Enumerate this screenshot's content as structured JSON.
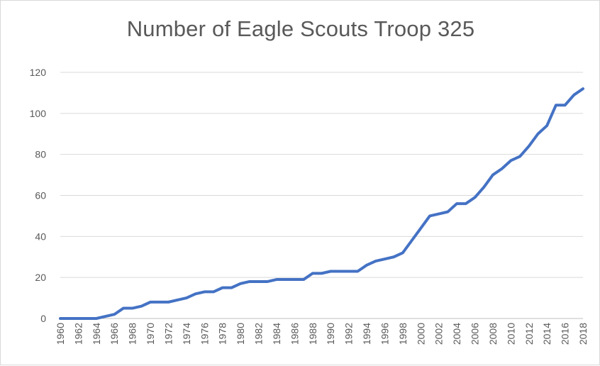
{
  "chart_data": {
    "type": "line",
    "title": "Number of Eagle Scouts Troop 325",
    "xlabel": "",
    "ylabel": "",
    "ylim": [
      0,
      120
    ],
    "yticks": [
      0,
      20,
      40,
      60,
      80,
      100,
      120
    ],
    "xlim": [
      1960,
      2018
    ],
    "xticks": [
      1960,
      1962,
      1964,
      1966,
      1968,
      1970,
      1972,
      1974,
      1976,
      1978,
      1980,
      1982,
      1984,
      1986,
      1988,
      1990,
      1992,
      1994,
      1996,
      1998,
      2000,
      2002,
      2004,
      2006,
      2008,
      2010,
      2012,
      2014,
      2016,
      2018
    ],
    "grid": true,
    "legend": "none",
    "colors": {
      "line": "#4472c4",
      "grid": "#d9d9d9",
      "text": "#595959"
    },
    "series": [
      {
        "x": [
          1960,
          1961,
          1962,
          1963,
          1964,
          1965,
          1966,
          1967,
          1968,
          1969,
          1970,
          1971,
          1972,
          1973,
          1974,
          1975,
          1976,
          1977,
          1978,
          1979,
          1980,
          1981,
          1982,
          1983,
          1984,
          1985,
          1986,
          1987,
          1988,
          1989,
          1990,
          1991,
          1992,
          1993,
          1994,
          1995,
          1996,
          1997,
          1998,
          1999,
          2000,
          2001,
          2002,
          2003,
          2004,
          2005,
          2006,
          2007,
          2008,
          2009,
          2010,
          2011,
          2012,
          2013,
          2014,
          2015,
          2016,
          2017,
          2018
        ],
        "values": [
          0,
          0,
          0,
          0,
          0,
          1,
          2,
          5,
          5,
          6,
          8,
          8,
          8,
          9,
          10,
          12,
          13,
          13,
          15,
          15,
          17,
          18,
          18,
          18,
          19,
          19,
          19,
          19,
          22,
          22,
          23,
          23,
          23,
          23,
          26,
          28,
          29,
          30,
          32,
          38,
          44,
          50,
          51,
          52,
          56,
          56,
          59,
          64,
          70,
          73,
          77,
          79,
          84,
          90,
          94,
          104,
          104,
          109,
          112
        ]
      }
    ]
  }
}
